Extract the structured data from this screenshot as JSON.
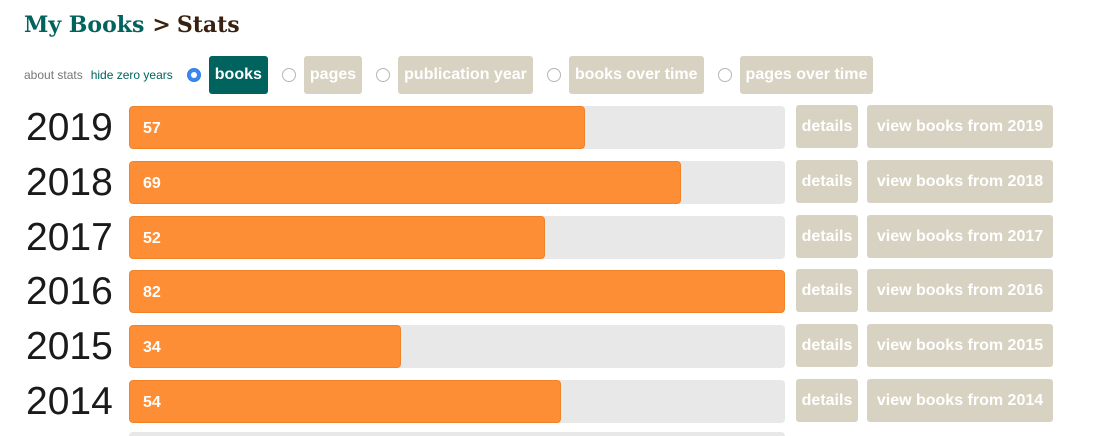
{
  "breadcrumb": {
    "link": "My Books",
    "separator": ">",
    "current": "Stats"
  },
  "controls": {
    "about_stats": "about stats",
    "hide_zero_years": "hide zero years",
    "tabs": [
      {
        "label": "books",
        "active": true
      },
      {
        "label": "pages",
        "active": false
      },
      {
        "label": "publication year",
        "active": false
      },
      {
        "label": "books over time",
        "active": false
      },
      {
        "label": "pages over time",
        "active": false
      }
    ]
  },
  "rows": [
    {
      "year": "2019",
      "count": "57",
      "details": "details",
      "view": "view books from 2019"
    },
    {
      "year": "2018",
      "count": "69",
      "details": "details",
      "view": "view books from 2018"
    },
    {
      "year": "2017",
      "count": "52",
      "details": "details",
      "view": "view books from 2017"
    },
    {
      "year": "2016",
      "count": "82",
      "details": "details",
      "view": "view books from 2016"
    },
    {
      "year": "2015",
      "count": "34",
      "details": "details",
      "view": "view books from 2015"
    },
    {
      "year": "2014",
      "count": "54",
      "details": "details",
      "view": "view books from 2014"
    }
  ],
  "chart_data": {
    "type": "bar",
    "categories": [
      "2019",
      "2018",
      "2017",
      "2016",
      "2015",
      "2014"
    ],
    "values": [
      57,
      69,
      52,
      82,
      34,
      54
    ],
    "xlim": [
      0,
      82
    ]
  },
  "colors": {
    "accent": "#00635d",
    "bar": "#fe8e36",
    "track": "#e8e8e8",
    "button": "#d8d2c2"
  }
}
